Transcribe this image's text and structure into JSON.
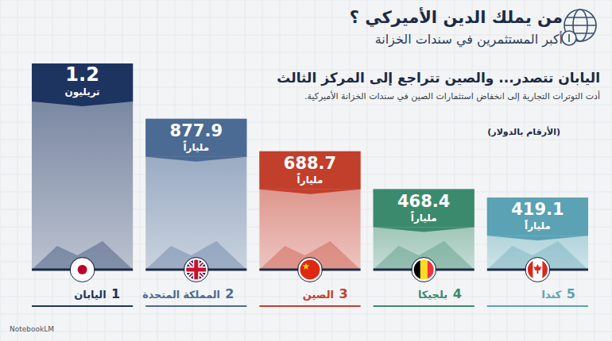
{
  "chart_data": {
    "type": "bar",
    "title": "من يملك الدين الأميركي ؟",
    "subtitle": "أكبر المستثمرين في سندات الخزانة",
    "annotations": [
      "اليابان تتصدر... والصين تتراجع إلى المركز الثالث",
      "أدت التوترات التجارية إلى انخفاض استثمارات الصين في سندات الخزانة الأميركية.",
      "(الأرقام بالدولار)",
      "NotebookLM"
    ],
    "categories": [
      "اليابان",
      "المملكة المتحدة",
      "الصين",
      "بلجيكا",
      "كندا"
    ],
    "ranks": [
      1,
      2,
      3,
      4,
      5
    ],
    "values": [
      1200,
      877.9,
      688.7,
      468.4,
      419.1
    ],
    "value_labels": [
      "1.2 تريليون",
      "877.9 ملياراً",
      "688.7 ملياراً",
      "468.4 ملياراً",
      "419.1 ملياراً"
    ],
    "colors": [
      "#1d3461",
      "#4b6a94",
      "#c23f2c",
      "#3c8a6e",
      "#5aa2b4"
    ],
    "ylim": [
      0,
      1200
    ],
    "data_labels": true,
    "tick_labels": false,
    "grid": false
  }
}
